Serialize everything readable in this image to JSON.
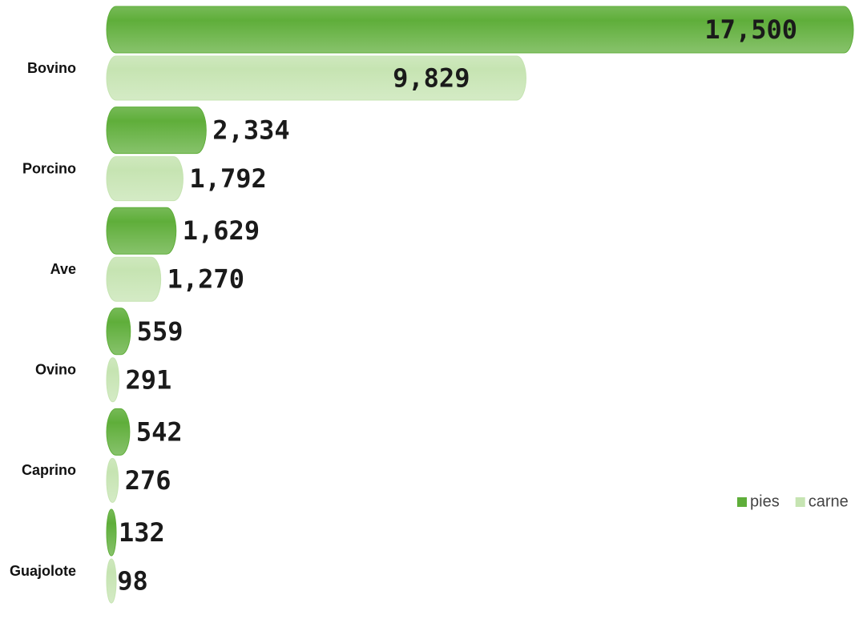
{
  "chart_data": {
    "type": "bar",
    "orientation": "horizontal",
    "categories": [
      "Bovino",
      "Porcino",
      "Ave",
      "Ovino",
      "Caprino",
      "Guajolote"
    ],
    "series": [
      {
        "name": "pies",
        "color": "#5fae3a",
        "values": [
          17500,
          2334,
          1629,
          559,
          542,
          132
        ],
        "value_labels": [
          "17,500",
          "2,334",
          "1,629",
          "559",
          "542",
          "132"
        ]
      },
      {
        "name": "carne",
        "color": "#c6e4b2",
        "values": [
          9829,
          1792,
          1270,
          291,
          276,
          98
        ],
        "value_labels": [
          "9,829",
          "1,792",
          "1,270",
          "291",
          "276",
          "98"
        ]
      }
    ],
    "legend": "right"
  }
}
